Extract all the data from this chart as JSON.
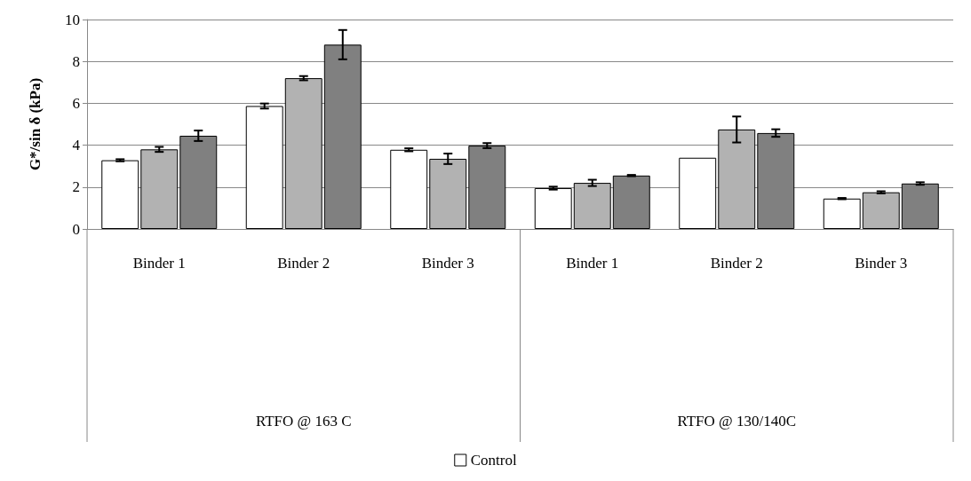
{
  "chart_data": {
    "type": "bar",
    "ylabel": "G*/sin δ (kPa)",
    "categories": [
      "Binder 1",
      "Binder 2",
      "Binder 3",
      "Binder 1",
      "Binder 2",
      "Binder 3"
    ],
    "annotations": [
      "RTFO @ 163 C",
      "RTFO @ 130/140C"
    ],
    "series": [
      {
        "name": "Control",
        "color": "#ffffff",
        "values": [
          3.28,
          5.87,
          3.78,
          1.95,
          3.4,
          1.45
        ],
        "errors": [
          0.05,
          0.12,
          0.07,
          0.07,
          null,
          0.03
        ]
      },
      {
        "color": "#b2b2b2",
        "values": [
          3.8,
          7.2,
          3.35,
          2.2,
          4.75,
          1.75
        ],
        "errors": [
          0.12,
          0.1,
          0.25,
          0.15,
          0.62,
          0.05
        ]
      },
      {
        "color": "#808080",
        "values": [
          4.45,
          8.8,
          3.98,
          2.55,
          4.58,
          2.17
        ],
        "errors": [
          0.25,
          0.7,
          0.12,
          0.03,
          0.18,
          0.06
        ]
      }
    ],
    "ylim": [
      0,
      10
    ],
    "yticks": [
      0,
      2,
      4,
      6,
      8,
      10
    ],
    "grid": "y",
    "legend": "bottom"
  }
}
